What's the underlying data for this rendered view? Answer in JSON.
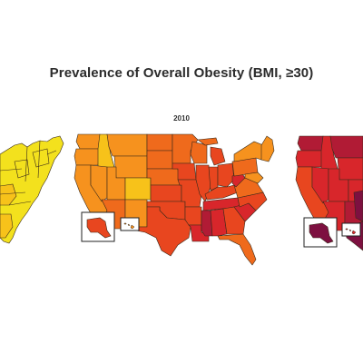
{
  "figure": {
    "title": "Prevalence of Overall Obesity (BMI, ≥30)",
    "maps": [
      {
        "id": "left",
        "year_label": ""
      },
      {
        "id": "center",
        "year_label": "2010"
      },
      {
        "id": "right",
        "year_label": ""
      }
    ]
  },
  "colors": {
    "yellow": "#f3e11d",
    "yellow_orange": "#f7c21a",
    "orange": "#f6921e",
    "dark_orange": "#ef6a1c",
    "red_orange": "#e8461f",
    "red": "#d8262b",
    "dark_red": "#b11b35",
    "maroon": "#7d1040"
  }
}
